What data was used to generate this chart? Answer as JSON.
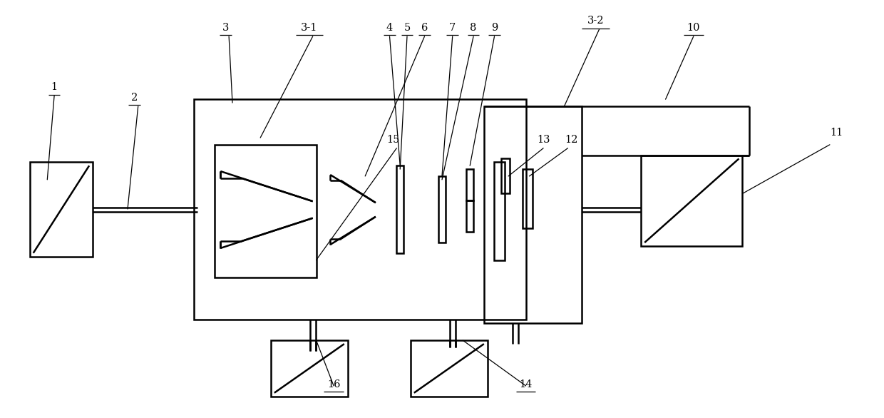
{
  "fig_width": 12.4,
  "fig_height": 5.86,
  "dpi": 100,
  "bg_color": "#ffffff",
  "lc": "#000000",
  "lw": 1.8,
  "lw_thin": 0.9
}
